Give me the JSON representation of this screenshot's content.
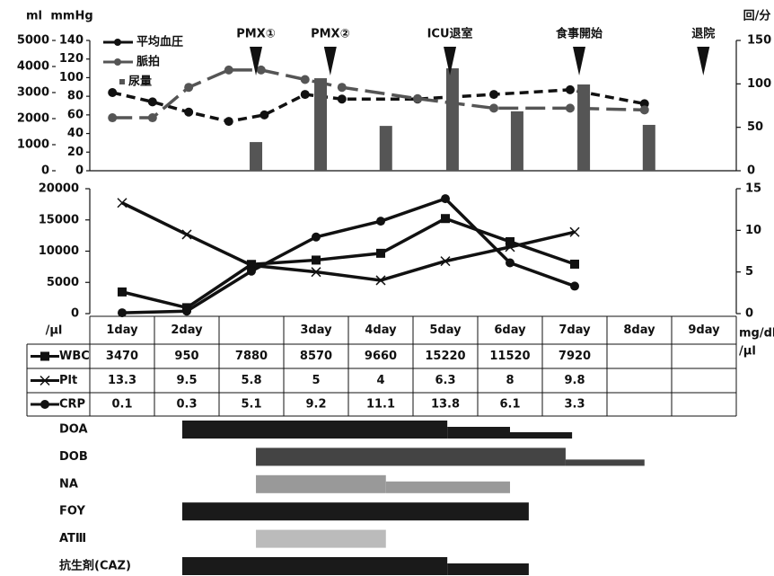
{
  "chart_data": [
    {
      "type": "combo",
      "y_label": "ml",
      "y3_label": "mmHg",
      "y2_label": "回/分",
      "xlim": [
        0,
        10
      ],
      "ylim": [
        0,
        5000
      ],
      "yticks": [
        0,
        1000,
        2000,
        3000,
        4000,
        5000
      ],
      "y3lim": [
        0,
        140
      ],
      "y3ticks": [
        0,
        20,
        40,
        60,
        80,
        100,
        120,
        140
      ],
      "y2lim": [
        0,
        150
      ],
      "y2ticks": [
        0,
        50,
        100,
        150
      ],
      "series": [
        {
          "name": "平均血圧",
          "type": "line",
          "axis": "y3",
          "color": "#111111",
          "line_style": "dashed",
          "x": [
            0.35,
            0.97,
            1.53,
            2.15,
            2.7,
            3.33,
            3.9,
            5.07,
            6.25,
            7.43,
            8.58
          ],
          "values": [
            84,
            74,
            63,
            53,
            60,
            82,
            77,
            77,
            82,
            87,
            72
          ]
        },
        {
          "name": "脈拍",
          "type": "line",
          "axis": "y2",
          "color": "#555555",
          "line_style": "long-dashed",
          "x": [
            0.35,
            0.97,
            1.53,
            2.15,
            2.65,
            3.33,
            3.9,
            5.07,
            6.25,
            7.43,
            8.58
          ],
          "values": [
            61,
            61,
            96,
            116,
            116,
            105,
            96,
            83,
            72,
            72,
            70
          ]
        },
        {
          "name": "尿量",
          "type": "bar",
          "axis": "y",
          "color": "#555555",
          "x": [
            2.57,
            3.57,
            4.58,
            5.61,
            6.61,
            7.64,
            8.65
          ],
          "values": [
            1100,
            3550,
            1720,
            3930,
            2280,
            3310,
            1760
          ]
        }
      ],
      "annotations": [
        {
          "text": "PMX①",
          "x": 2.57
        },
        {
          "text": "PMX②",
          "x": 3.72
        },
        {
          "text": "ICU退室",
          "x": 5.57
        },
        {
          "text": "食事開始",
          "x": 7.57
        },
        {
          "text": "退院",
          "x": 9.49
        }
      ]
    },
    {
      "type": "line",
      "y_label": "/μl",
      "y2_label": "mg/dl",
      "y2_label_2": "/μl",
      "categories": [
        "1day",
        "2day",
        null,
        "3day",
        "4day",
        "5day",
        "6day",
        "7day",
        "8day",
        "9day"
      ],
      "ylim": [
        0,
        20000
      ],
      "yticks": [
        0,
        5000,
        10000,
        15000,
        20000
      ],
      "y2lim": [
        0,
        15
      ],
      "y2ticks": [
        0,
        5,
        10,
        15
      ],
      "series": [
        {
          "name": "WBC",
          "axis": "y",
          "color": "#111111",
          "marker": "square",
          "values": [
            3470,
            950,
            7880,
            8570,
            9660,
            15220,
            11520,
            7920,
            null,
            null
          ]
        },
        {
          "name": "Plt",
          "axis": "y2",
          "color": "#111111",
          "marker": "cross",
          "values": [
            13.3,
            9.5,
            5.8,
            5,
            4,
            6.3,
            8,
            9.8,
            null,
            null
          ]
        },
        {
          "name": "CRP",
          "axis": "y2",
          "color": "#111111",
          "marker": "circle",
          "values": [
            0.1,
            0.3,
            5.1,
            9.2,
            11.1,
            13.8,
            6.1,
            3.3,
            null,
            null
          ]
        }
      ]
    }
  ],
  "drugs": {
    "xlim": [
      0,
      10
    ],
    "items": [
      {
        "name": "DOA",
        "color": "#1a1a1a",
        "segments": [
          {
            "start": 1.43,
            "end": 5.53,
            "level": 3
          },
          {
            "start": 5.53,
            "end": 6.5,
            "level": 2
          },
          {
            "start": 6.5,
            "end": 7.46,
            "level": 1
          }
        ]
      },
      {
        "name": "DOB",
        "color": "#444444",
        "segments": [
          {
            "start": 2.57,
            "end": 7.36,
            "level": 3
          },
          {
            "start": 7.36,
            "end": 8.58,
            "level": 1
          }
        ]
      },
      {
        "name": "NA",
        "color": "#999999",
        "segments": [
          {
            "start": 2.57,
            "end": 4.58,
            "level": 3
          },
          {
            "start": 4.58,
            "end": 6.5,
            "level": 2
          }
        ]
      },
      {
        "name": "FOY",
        "color": "#1a1a1a",
        "segments": [
          {
            "start": 1.43,
            "end": 6.79,
            "level": 3
          }
        ]
      },
      {
        "name": "ATⅢ",
        "color": "#bbbbbb",
        "segments": [
          {
            "start": 2.57,
            "end": 4.58,
            "level": 3
          }
        ]
      },
      {
        "name": "抗生剤(CAZ)",
        "color": "#1a1a1a",
        "segments": [
          {
            "start": 1.43,
            "end": 5.53,
            "level": 3
          },
          {
            "start": 5.53,
            "end": 6.79,
            "level": 2
          }
        ]
      }
    ]
  }
}
